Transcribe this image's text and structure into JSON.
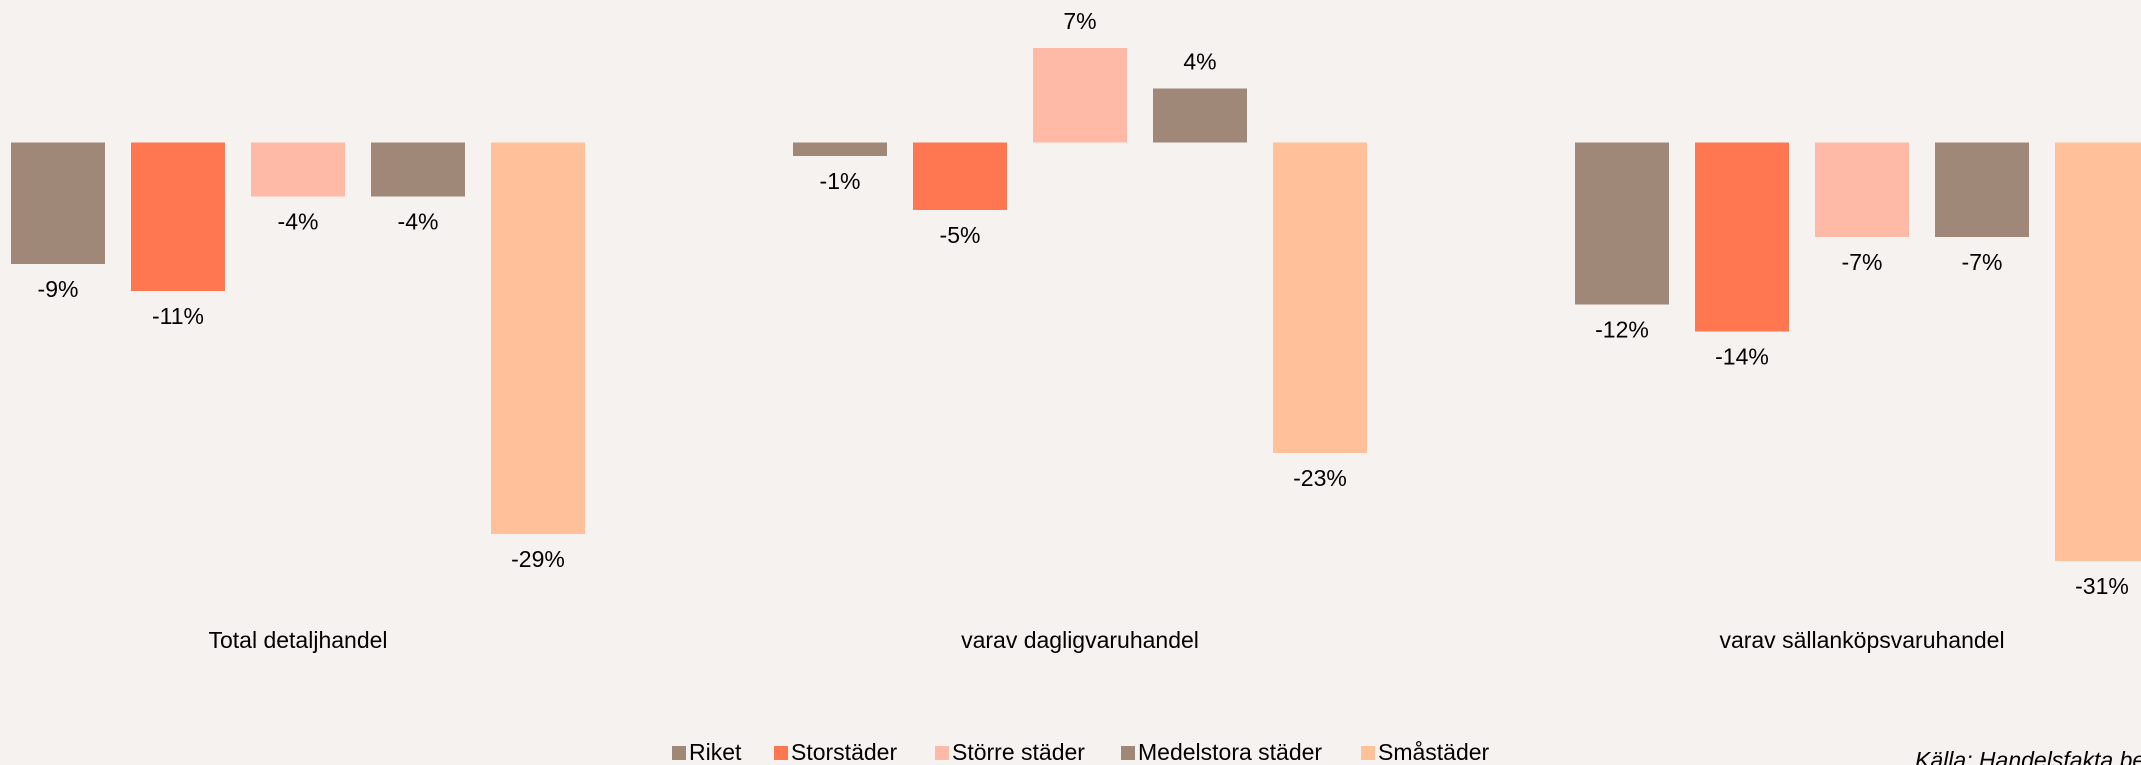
{
  "chart_data": {
    "type": "bar",
    "categories": [
      "Total detaljhandel",
      "varav dagligvaruhandel",
      "varav sällanköpsvaruhandel"
    ],
    "series": [
      {
        "name": "Riket",
        "color": "#a08879",
        "values": [
          -9,
          -1,
          -12
        ],
        "value_labels": [
          "-9%",
          "-1%",
          "-12%"
        ]
      },
      {
        "name": "Storstäder",
        "color": "#ff7750",
        "values": [
          -11,
          -5,
          -14
        ],
        "value_labels": [
          "-11%",
          "-5%",
          "-14%"
        ]
      },
      {
        "name": "Större städer",
        "color": "#ffb9a7",
        "values": [
          -4,
          7,
          -7
        ],
        "value_labels": [
          "-4%",
          "7%",
          "-7%"
        ]
      },
      {
        "name": "Medelstora städer",
        "color": "#a08879",
        "values": [
          -4,
          4,
          -7
        ],
        "value_labels": [
          "-4%",
          "4%",
          "-7%"
        ]
      },
      {
        "name": "Småstäder",
        "color": "#ffc09a",
        "values": [
          -29,
          -23,
          -31
        ],
        "value_labels": [
          "-29%",
          "-23%",
          "-31%"
        ]
      }
    ],
    "source": "Källa: Handelsfakta bea"
  }
}
